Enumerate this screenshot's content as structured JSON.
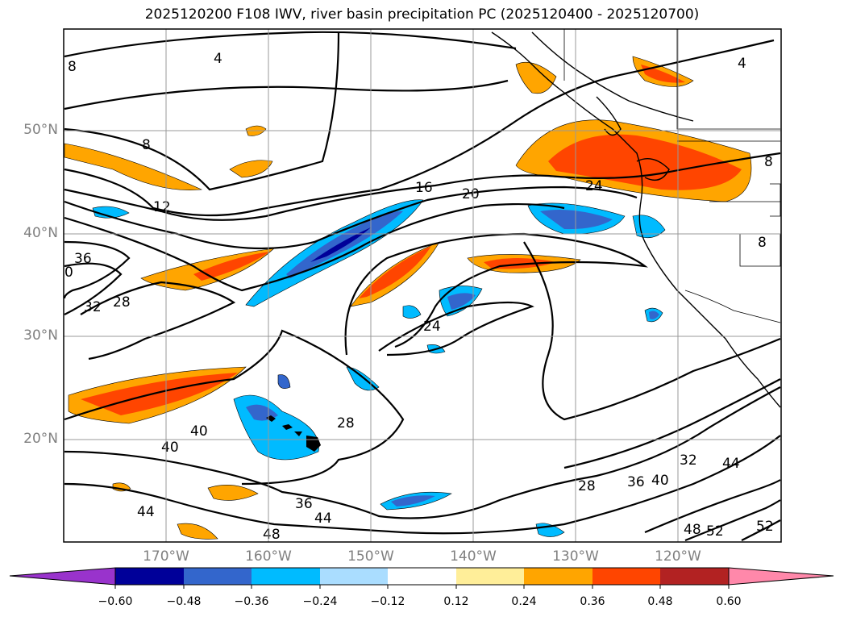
{
  "title": "2025120200 F108 IWV, river basin precipitation PC (2025120400 - 2025120700)",
  "map": {
    "lat_labels": [
      "50°N",
      "40°N",
      "30°N",
      "20°N"
    ],
    "lon_labels": [
      "170°W",
      "160°W",
      "150°W",
      "140°W",
      "130°W",
      "120°W"
    ],
    "contour_labels": [
      "4",
      "8",
      "8",
      "12",
      "16",
      "20",
      "24",
      "24",
      "28",
      "28",
      "32",
      "36",
      "36",
      "40",
      "40",
      "28",
      "36",
      "40",
      "32",
      "44",
      "44",
      "48",
      "44",
      "48",
      "52",
      "52",
      "4",
      "8",
      "8",
      "0"
    ]
  },
  "colorbar": {
    "colors": [
      "#9933cc",
      "#000099",
      "#3366cc",
      "#00bbff",
      "#aaddff",
      "#ffffff",
      "#ffee99",
      "#ffa500",
      "#ff4500",
      "#b22222",
      "#ff88aa"
    ],
    "tick_labels": [
      "−0.60",
      "−0.48",
      "−0.36",
      "−0.24",
      "−0.12",
      "0.12",
      "0.24",
      "0.36",
      "0.48",
      "0.60"
    ]
  },
  "colors": {
    "contour": "#000000",
    "grid": "#999999",
    "coast": "#000000"
  }
}
